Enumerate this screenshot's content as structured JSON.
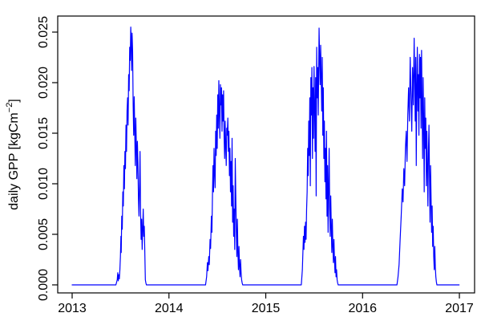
{
  "chart_data": {
    "type": "line",
    "title": "",
    "xlabel": "",
    "ylabel": "daily GPP [kgCm−2]",
    "ylabel_parts": {
      "main": "daily GPP [kgCm",
      "superscript": "−2",
      "close": "]"
    },
    "x_ticks": [
      2013,
      2014,
      2015,
      2016,
      2017
    ],
    "x_tick_labels": [
      "2013",
      "2014",
      "2015",
      "2016",
      "2017"
    ],
    "y_ticks": [
      0,
      0.005,
      0.01,
      0.015,
      0.02,
      0.025
    ],
    "y_tick_labels": [
      "0.000",
      "0.005",
      "0.010",
      "0.015",
      "0.020",
      "0.025"
    ],
    "xlim": [
      2012.851,
      2017.157
    ],
    "ylim": [
      -0.000794,
      0.026587
    ],
    "grid": false,
    "legend": null,
    "line_color": "#0000ff",
    "axis_color": "#000000",
    "background_color": "#ffffff",
    "series": [
      {
        "name": "daily GPP 2013",
        "year": 2013,
        "days_in_year": 365,
        "peak_value": 0.0255,
        "points": [
          [
            0,
            0
          ],
          [
            165,
            0
          ],
          [
            170,
            0.0005
          ],
          [
            172,
            0.0012
          ],
          [
            174,
            0.0004
          ],
          [
            176,
            0.001
          ],
          [
            178,
            0.0006
          ],
          [
            180,
            0.0015
          ],
          [
            182,
            0.0028
          ],
          [
            184,
            0.0048
          ],
          [
            185,
            0.0032
          ],
          [
            187,
            0.0068
          ],
          [
            189,
            0.0055
          ],
          [
            191,
            0.0092
          ],
          [
            193,
            0.0078
          ],
          [
            195,
            0.0118
          ],
          [
            197,
            0.0095
          ],
          [
            199,
            0.0132
          ],
          [
            201,
            0.0115
          ],
          [
            203,
            0.0158
          ],
          [
            205,
            0.0132
          ],
          [
            207,
            0.0172
          ],
          [
            209,
            0.0185
          ],
          [
            211,
            0.0158
          ],
          [
            213,
            0.0208
          ],
          [
            215,
            0.0192
          ],
          [
            217,
            0.0235
          ],
          [
            219,
            0.0222
          ],
          [
            221,
            0.0255
          ],
          [
            223,
            0.0238
          ],
          [
            224,
            0.0212
          ],
          [
            226,
            0.0249
          ],
          [
            228,
            0.0231
          ],
          [
            230,
            0.0178
          ],
          [
            232,
            0.0148
          ],
          [
            234,
            0.0186
          ],
          [
            236,
            0.0152
          ],
          [
            238,
            0.0118
          ],
          [
            240,
            0.0165
          ],
          [
            242,
            0.0139
          ],
          [
            244,
            0.0105
          ],
          [
            246,
            0.0142
          ],
          [
            248,
            0.0121
          ],
          [
            250,
            0.0085
          ],
          [
            252,
            0.0068
          ],
          [
            254,
            0.0098
          ],
          [
            256,
            0.0132
          ],
          [
            258,
            0.0072
          ],
          [
            260,
            0.0045
          ],
          [
            262,
            0.0065
          ],
          [
            264,
            0.0035
          ],
          [
            266,
            0.0055
          ],
          [
            268,
            0.0075
          ],
          [
            270,
            0.0048
          ],
          [
            272,
            0.0058
          ],
          [
            274,
            0.0032
          ],
          [
            276,
            0.0005
          ],
          [
            278,
            0.0002
          ],
          [
            280,
            0
          ],
          [
            364,
            0
          ]
        ]
      },
      {
        "name": "daily GPP 2014",
        "year": 2014,
        "days_in_year": 365,
        "peak_value": 0.0202,
        "points": [
          [
            0,
            0
          ],
          [
            138,
            0
          ],
          [
            142,
            0.0008
          ],
          [
            145,
            0.0022
          ],
          [
            147,
            0.0014
          ],
          [
            150,
            0.0028
          ],
          [
            152,
            0.002
          ],
          [
            155,
            0.0045
          ],
          [
            157,
            0.0036
          ],
          [
            160,
            0.0068
          ],
          [
            162,
            0.0052
          ],
          [
            164,
            0.0088
          ],
          [
            166,
            0.0118
          ],
          [
            168,
            0.0092
          ],
          [
            170,
            0.0135
          ],
          [
            172,
            0.0112
          ],
          [
            174,
            0.0096
          ],
          [
            176,
            0.0152
          ],
          [
            178,
            0.0128
          ],
          [
            180,
            0.0168
          ],
          [
            182,
            0.0135
          ],
          [
            184,
            0.0188
          ],
          [
            186,
            0.0155
          ],
          [
            188,
            0.0202
          ],
          [
            190,
            0.0172
          ],
          [
            192,
            0.0145
          ],
          [
            194,
            0.0198
          ],
          [
            196,
            0.0178
          ],
          [
            198,
            0.0195
          ],
          [
            200,
            0.0152
          ],
          [
            202,
            0.0188
          ],
          [
            204,
            0.0162
          ],
          [
            206,
            0.0192
          ],
          [
            208,
            0.0145
          ],
          [
            210,
            0.0125
          ],
          [
            212,
            0.0162
          ],
          [
            214,
            0.0138
          ],
          [
            216,
            0.0118
          ],
          [
            218,
            0.0155
          ],
          [
            220,
            0.0148
          ],
          [
            222,
            0.0165
          ],
          [
            224,
            0.0132
          ],
          [
            226,
            0.0152
          ],
          [
            228,
            0.0108
          ],
          [
            230,
            0.0135
          ],
          [
            232,
            0.0092
          ],
          [
            234,
            0.0122
          ],
          [
            236,
            0.0078
          ],
          [
            238,
            0.0145
          ],
          [
            240,
            0.0062
          ],
          [
            242,
            0.0098
          ],
          [
            244,
            0.0048
          ],
          [
            246,
            0.0075
          ],
          [
            248,
            0.0035
          ],
          [
            250,
            0.0125
          ],
          [
            252,
            0.0088
          ],
          [
            254,
            0.0052
          ],
          [
            256,
            0.0028
          ],
          [
            258,
            0.0065
          ],
          [
            260,
            0.0032
          ],
          [
            262,
            0.0015
          ],
          [
            264,
            0.0038
          ],
          [
            266,
            0.0018
          ],
          [
            268,
            0.0008
          ],
          [
            270,
            0.0025
          ],
          [
            272,
            0.0012
          ],
          [
            274,
            0.0005
          ],
          [
            276,
            0.0002
          ],
          [
            278,
            0
          ],
          [
            364,
            0
          ]
        ]
      },
      {
        "name": "daily GPP 2015",
        "year": 2015,
        "days_in_year": 365,
        "peak_value": 0.0254,
        "points": [
          [
            0,
            0
          ],
          [
            134,
            0
          ],
          [
            138,
            0.0015
          ],
          [
            140,
            0.0032
          ],
          [
            142,
            0.0048
          ],
          [
            144,
            0.0035
          ],
          [
            146,
            0.0058
          ],
          [
            148,
            0.0042
          ],
          [
            150,
            0.0062
          ],
          [
            152,
            0.0045
          ],
          [
            154,
            0.0075
          ],
          [
            156,
            0.0092
          ],
          [
            158,
            0.0135
          ],
          [
            160,
            0.0108
          ],
          [
            162,
            0.0162
          ],
          [
            164,
            0.0128
          ],
          [
            166,
            0.0185
          ],
          [
            168,
            0.0098
          ],
          [
            170,
            0.0205
          ],
          [
            172,
            0.0168
          ],
          [
            174,
            0.0215
          ],
          [
            176,
            0.0125
          ],
          [
            178,
            0.0195
          ],
          [
            180,
            0.0145
          ],
          [
            182,
            0.0216
          ],
          [
            184,
            0.0178
          ],
          [
            186,
            0.0132
          ],
          [
            188,
            0.0205
          ],
          [
            190,
            0.0088
          ],
          [
            192,
            0.0235
          ],
          [
            194,
            0.0185
          ],
          [
            196,
            0.0215
          ],
          [
            198,
            0.0168
          ],
          [
            201,
            0.0254
          ],
          [
            203,
            0.0225
          ],
          [
            205,
            0.0198
          ],
          [
            207,
            0.0237
          ],
          [
            209,
            0.0205
          ],
          [
            211,
            0.0172
          ],
          [
            213,
            0.0225
          ],
          [
            215,
            0.0148
          ],
          [
            217,
            0.0195
          ],
          [
            219,
            0.0125
          ],
          [
            221,
            0.0162
          ],
          [
            223,
            0.0102
          ],
          [
            225,
            0.0135
          ],
          [
            227,
            0.0085
          ],
          [
            229,
            0.0152
          ],
          [
            231,
            0.0068
          ],
          [
            233,
            0.0118
          ],
          [
            235,
            0.0052
          ],
          [
            237,
            0.0095
          ],
          [
            239,
            0.0135
          ],
          [
            241,
            0.0075
          ],
          [
            243,
            0.0048
          ],
          [
            245,
            0.0088
          ],
          [
            247,
            0.0058
          ],
          [
            249,
            0.0032
          ],
          [
            251,
            0.0065
          ],
          [
            253,
            0.0038
          ],
          [
            255,
            0.0022
          ],
          [
            257,
            0.0045
          ],
          [
            259,
            0.0025
          ],
          [
            261,
            0.0012
          ],
          [
            263,
            0.0028
          ],
          [
            265,
            0.0008
          ],
          [
            267,
            0.0015
          ],
          [
            269,
            0.0005
          ],
          [
            271,
            0.0002
          ],
          [
            273,
            0
          ],
          [
            364,
            0
          ]
        ]
      },
      {
        "name": "daily GPP 2016",
        "year": 2016,
        "days_in_year": 366,
        "peak_value": 0.0244,
        "points": [
          [
            0,
            0
          ],
          [
            130,
            0
          ],
          [
            134,
            0.0008
          ],
          [
            138,
            0.002
          ],
          [
            142,
            0.0045
          ],
          [
            146,
            0.0068
          ],
          [
            150,
            0.0095
          ],
          [
            153,
            0.0082
          ],
          [
            156,
            0.0115
          ],
          [
            159,
            0.0098
          ],
          [
            162,
            0.0135
          ],
          [
            165,
            0.0152
          ],
          [
            168,
            0.0122
          ],
          [
            171,
            0.0168
          ],
          [
            174,
            0.0195
          ],
          [
            177,
            0.0162
          ],
          [
            180,
            0.0225
          ],
          [
            183,
            0.0188
          ],
          [
            186,
            0.0152
          ],
          [
            189,
            0.0215
          ],
          [
            192,
            0.0178
          ],
          [
            195,
            0.0244
          ],
          [
            197,
            0.0205
          ],
          [
            199,
            0.0162
          ],
          [
            201,
            0.0225
          ],
          [
            203,
            0.0118
          ],
          [
            205,
            0.0195
          ],
          [
            207,
            0.0235
          ],
          [
            209,
            0.0172
          ],
          [
            211,
            0.0208
          ],
          [
            213,
            0.0148
          ],
          [
            215,
            0.0228
          ],
          [
            217,
            0.0185
          ],
          [
            219,
            0.0225
          ],
          [
            221,
            0.0155
          ],
          [
            223,
            0.0232
          ],
          [
            225,
            0.0178
          ],
          [
            227,
            0.0125
          ],
          [
            229,
            0.0205
          ],
          [
            231,
            0.0162
          ],
          [
            233,
            0.0092
          ],
          [
            235,
            0.0185
          ],
          [
            237,
            0.0135
          ],
          [
            239,
            0.0165
          ],
          [
            241,
            0.0098
          ],
          [
            243,
            0.0152
          ],
          [
            245,
            0.0118
          ],
          [
            247,
            0.0078
          ],
          [
            249,
            0.0132
          ],
          [
            251,
            0.0158
          ],
          [
            253,
            0.0108
          ],
          [
            255,
            0.0062
          ],
          [
            257,
            0.0118
          ],
          [
            259,
            0.0085
          ],
          [
            261,
            0.0052
          ],
          [
            263,
            0.0078
          ],
          [
            265,
            0.0038
          ],
          [
            267,
            0.0058
          ],
          [
            269,
            0.0028
          ],
          [
            271,
            0.0015
          ],
          [
            273,
            0.0038
          ],
          [
            275,
            0.0018
          ],
          [
            277,
            0.0008
          ],
          [
            279,
            0.0003
          ],
          [
            281,
            0
          ],
          [
            365,
            0
          ]
        ]
      }
    ]
  }
}
